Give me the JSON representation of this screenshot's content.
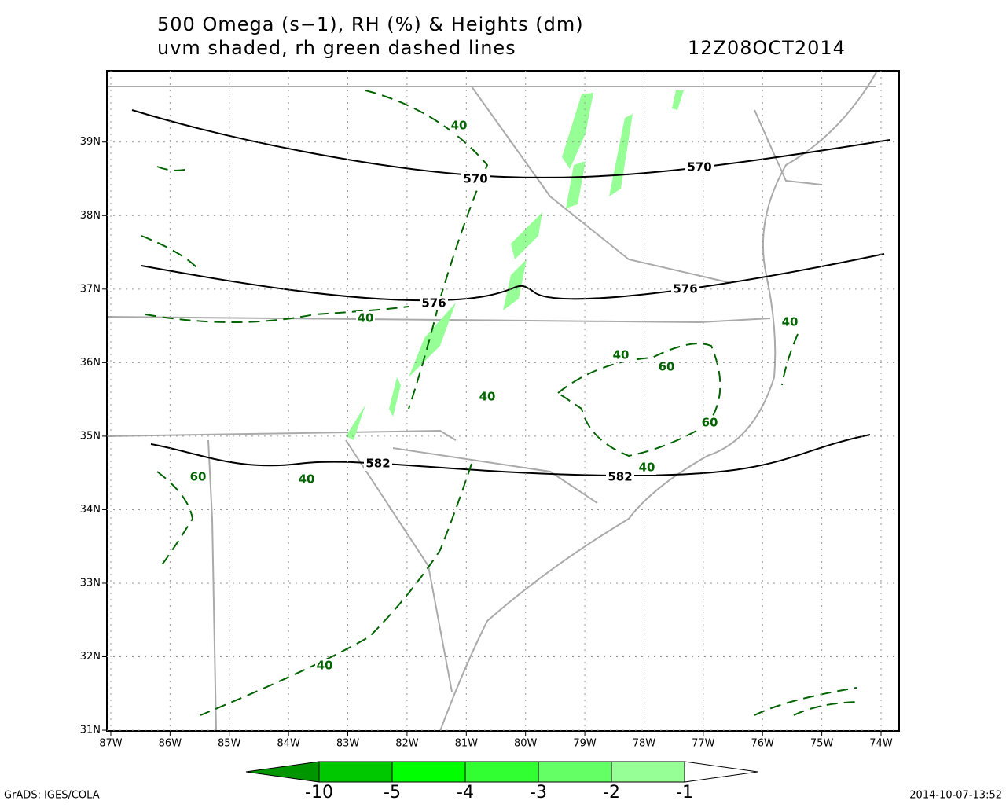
{
  "title": [
    "500 Omega (s−1), RH (%) & Heights (dm)",
    "uvm shaded, rh green dashed lines"
  ],
  "valid_time": "12Z08OCT2014",
  "map": {
    "lonlim": [
      -87.066,
      -73.695
    ],
    "latlim": [
      30.99,
      39.97
    ],
    "lon_ticks": [
      {
        "value": -87,
        "label": "87W"
      },
      {
        "value": -86,
        "label": "86W"
      },
      {
        "value": -85,
        "label": "85W"
      },
      {
        "value": -84,
        "label": "84W"
      },
      {
        "value": -83,
        "label": "83W"
      },
      {
        "value": -82,
        "label": "82W"
      },
      {
        "value": -81,
        "label": "81W"
      },
      {
        "value": -80,
        "label": "80W"
      },
      {
        "value": -79,
        "label": "79W"
      },
      {
        "value": -78,
        "label": "78W"
      },
      {
        "value": -77,
        "label": "77W"
      },
      {
        "value": -76,
        "label": "76W"
      },
      {
        "value": -75,
        "label": "75W"
      },
      {
        "value": -74,
        "label": "74W"
      }
    ],
    "lat_ticks": [
      {
        "value": 31,
        "label": "31N"
      },
      {
        "value": 32,
        "label": "32N"
      },
      {
        "value": 33,
        "label": "33N"
      },
      {
        "value": 34,
        "label": "34N"
      },
      {
        "value": 35,
        "label": "35N"
      },
      {
        "value": 36,
        "label": "36N"
      },
      {
        "value": 37,
        "label": "37N"
      },
      {
        "value": 38,
        "label": "38N"
      },
      {
        "value": 39,
        "label": "39N"
      }
    ],
    "grid": true,
    "height_labels": [
      570,
      570,
      576,
      576,
      582,
      582
    ],
    "rh_labels": [
      40,
      40,
      40,
      40,
      40,
      40,
      40,
      40,
      60,
      60,
      60
    ]
  },
  "colorbar": {
    "levels": [
      -10,
      -5,
      -4,
      -3,
      -2,
      -1
    ],
    "colors": [
      "#009600",
      "#00c800",
      "#00ff00",
      "#32ff32",
      "#64ff64",
      "#96ff96",
      "#ffffff"
    ]
  },
  "footer": {
    "left": "GrADS: IGES/COLA",
    "right": "2014-10-07-13:52"
  }
}
